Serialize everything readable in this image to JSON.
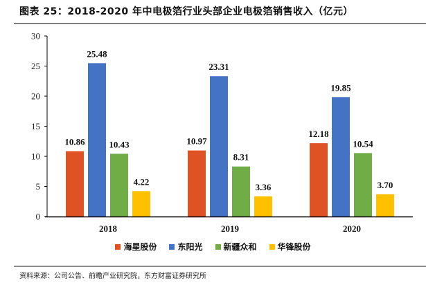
{
  "header": {
    "title": "图表 25：2018-2020 年中电极箔行业头部企业电极箔销售收入（亿元）"
  },
  "footer": {
    "source": "资料来源：公司公告、前瞻产业研究院，东方财富证券研究所"
  },
  "chart_data": {
    "type": "bar",
    "title": "2018-2020 年中电极箔行业头部企业电极箔销售收入（亿元）",
    "xlabel": "",
    "ylabel": "",
    "categories": [
      "2018",
      "2019",
      "2020"
    ],
    "ylim": [
      0,
      30
    ],
    "yticks": [
      0,
      5,
      10,
      15,
      20,
      25,
      30
    ],
    "grid": false,
    "legend_position": "bottom",
    "series": [
      {
        "name": "海星股份",
        "color": "#DE5223",
        "values": [
          10.86,
          10.97,
          12.18
        ],
        "labels": [
          "10.86",
          "10.97",
          "12.18"
        ]
      },
      {
        "name": "东阳光",
        "color": "#4472C4",
        "values": [
          25.48,
          23.31,
          19.85
        ],
        "labels": [
          "25.48",
          "23.31",
          "19.85"
        ]
      },
      {
        "name": "新疆众和",
        "color": "#70AD47",
        "values": [
          10.43,
          8.31,
          10.54
        ],
        "labels": [
          "10.43",
          "8.31",
          "10.54"
        ]
      },
      {
        "name": "华锋股份",
        "color": "#FFC000",
        "values": [
          4.22,
          3.36,
          3.7
        ],
        "labels": [
          "4.22",
          "3.36",
          "3.70"
        ]
      }
    ]
  }
}
